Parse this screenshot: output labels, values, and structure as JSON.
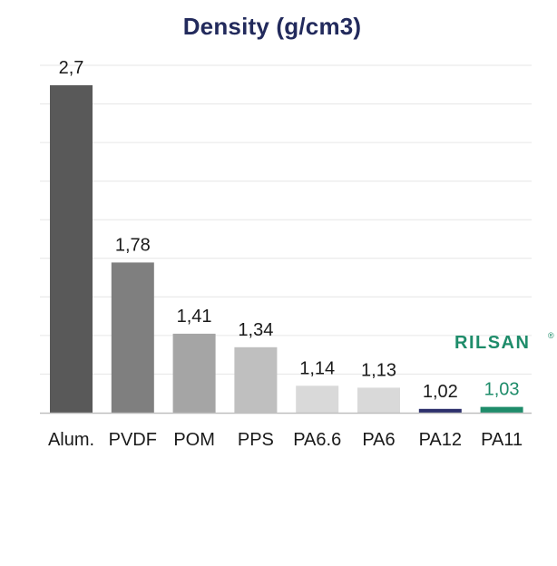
{
  "chart_data": {
    "type": "bar",
    "title": "Density (g/cm3)",
    "xlabel": "",
    "ylabel": "",
    "categories": [
      "Alum.",
      "PVDF",
      "POM",
      "PPS",
      "PA6.6",
      "PA6",
      "PA12",
      "PA11"
    ],
    "values": [
      2.7,
      1.78,
      1.41,
      1.34,
      1.14,
      1.13,
      1.02,
      1.03
    ],
    "value_labels": [
      "2,7",
      "1,78",
      "1,41",
      "1,34",
      "1,14",
      "1,13",
      "1,02",
      "1,03"
    ],
    "ylim": [
      1.0,
      2.7
    ],
    "grid": true,
    "legend": "none",
    "colors": [
      "#595959",
      "#7f7f7f",
      "#a5a5a5",
      "#bfbfbf",
      "#d9d9d9",
      "#d9d9d9",
      "#2b2e6b",
      "#1e8c6a"
    ],
    "label_colors": [
      "#1a1a1a",
      "#1a1a1a",
      "#1a1a1a",
      "#1a1a1a",
      "#1a1a1a",
      "#1a1a1a",
      "#1a1a1a",
      "#1e8c6a"
    ]
  },
  "brand": {
    "name": "RILSAN",
    "mark": "®",
    "color": "#1e8c6a"
  }
}
